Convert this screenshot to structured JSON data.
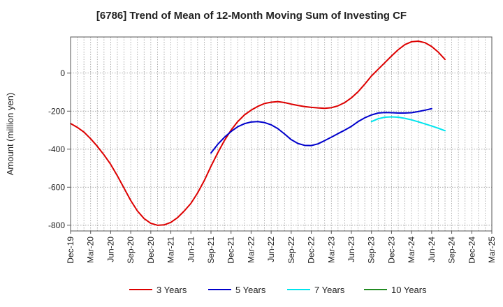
{
  "chart_data": {
    "type": "line",
    "title": "[6786]  Trend of Mean of 12-Month Moving Sum of Investing CF",
    "ylabel": "Amount (million yen)",
    "xlabel": "",
    "ylim": [
      -830,
      190
    ],
    "yticks": [
      0,
      -200,
      -400,
      -600,
      -800
    ],
    "x_categories": [
      "Dec-19",
      "Jan-20",
      "Feb-20",
      "Mar-20",
      "Apr-20",
      "May-20",
      "Jun-20",
      "Jul-20",
      "Aug-20",
      "Sep-20",
      "Oct-20",
      "Nov-20",
      "Dec-20",
      "Jan-21",
      "Feb-21",
      "Mar-21",
      "Apr-21",
      "May-21",
      "Jun-21",
      "Jul-21",
      "Aug-21",
      "Sep-21",
      "Oct-21",
      "Nov-21",
      "Dec-21",
      "Jan-22",
      "Feb-22",
      "Mar-22",
      "Apr-22",
      "May-22",
      "Jun-22",
      "Jul-22",
      "Aug-22",
      "Sep-22",
      "Oct-22",
      "Nov-22",
      "Dec-22",
      "Jan-23",
      "Feb-23",
      "Mar-23",
      "Apr-23",
      "May-23",
      "Jun-23",
      "Jul-23",
      "Aug-23",
      "Sep-23",
      "Oct-23",
      "Nov-23",
      "Dec-23",
      "Jan-24",
      "Feb-24",
      "Mar-24",
      "Apr-24",
      "May-24",
      "Jun-24",
      "Jul-24",
      "Aug-24",
      "Sep-24",
      "Oct-24",
      "Nov-24",
      "Dec-24",
      "Jan-25",
      "Feb-25",
      "Mar-25"
    ],
    "x_tick_labels": [
      "Dec-19",
      "Mar-20",
      "Jun-20",
      "Sep-20",
      "Dec-20",
      "Mar-21",
      "Jun-21",
      "Sep-21",
      "Dec-21",
      "Mar-22",
      "Jun-22",
      "Sep-22",
      "Dec-22",
      "Mar-23",
      "Jun-23",
      "Sep-23",
      "Dec-23",
      "Mar-24",
      "Jun-24",
      "Sep-24",
      "Dec-24",
      "Mar-25"
    ],
    "series": [
      {
        "name": "3 Years",
        "color": "#dd0000",
        "start_index": 0,
        "values": [
          -265,
          -285,
          -310,
          -345,
          -385,
          -430,
          -480,
          -540,
          -605,
          -670,
          -725,
          -765,
          -790,
          -800,
          -798,
          -785,
          -760,
          -725,
          -685,
          -630,
          -565,
          -490,
          -420,
          -355,
          -300,
          -255,
          -220,
          -195,
          -175,
          -160,
          -153,
          -150,
          -155,
          -163,
          -170,
          -176,
          -180,
          -183,
          -185,
          -182,
          -172,
          -155,
          -130,
          -98,
          -58,
          -15,
          20,
          55,
          90,
          123,
          150,
          165,
          168,
          160,
          140,
          110,
          72
        ]
      },
      {
        "name": "5 Years",
        "color": "#0000cc",
        "start_index": 21,
        "values": [
          -420,
          -375,
          -338,
          -307,
          -282,
          -266,
          -257,
          -255,
          -260,
          -272,
          -292,
          -320,
          -350,
          -370,
          -380,
          -381,
          -372,
          -355,
          -337,
          -318,
          -300,
          -280,
          -255,
          -235,
          -220,
          -210,
          -207,
          -208,
          -210,
          -210,
          -208,
          -202,
          -195,
          -187
        ]
      },
      {
        "name": "7 Years",
        "color": "#00e5ee",
        "start_index": 45,
        "values": [
          -255,
          -240,
          -232,
          -230,
          -232,
          -238,
          -246,
          -256,
          -267,
          -278,
          -290,
          -303
        ]
      },
      {
        "name": "10 Years",
        "color": "#228b22",
        "start_index": 0,
        "values": []
      }
    ],
    "grid": true,
    "legend_position": "bottom"
  }
}
